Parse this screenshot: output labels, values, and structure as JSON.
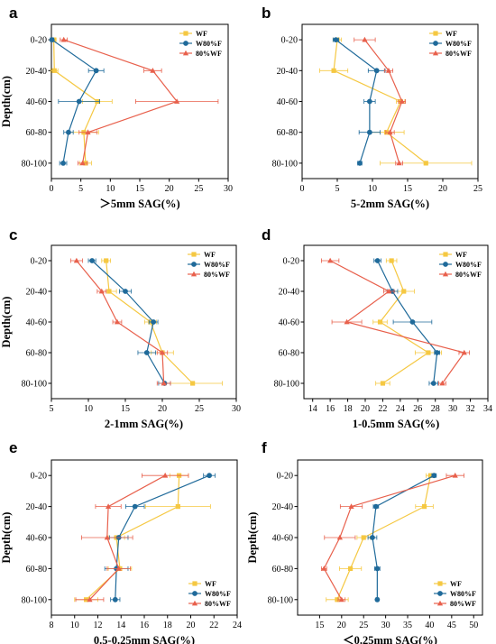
{
  "colors": {
    "WF": "#F5C842",
    "W80%F": "#1F6A9A",
    "80%WF": "#E8604C"
  },
  "chart_data": [
    {
      "type": "line",
      "panel": "a",
      "xlabel": "＞5mm SAG(%)",
      "ylabel": "Depth(cm)",
      "xlim": [
        0,
        30
      ],
      "xticks": [
        0,
        5,
        10,
        15,
        20,
        25,
        30
      ],
      "categories": [
        "0-20",
        "20-40",
        "40-60",
        "60-80",
        "80-100"
      ],
      "legend": "top-right",
      "series": [
        {
          "name": "WF",
          "marker": "square",
          "values": [
            0.4,
            0.5,
            7.8,
            5.5,
            5.8
          ],
          "err": [
            0.4,
            0.6,
            2.5,
            2.5,
            1.0
          ]
        },
        {
          "name": "W80%F",
          "marker": "circle",
          "values": [
            0.1,
            7.6,
            4.7,
            2.9,
            2.0
          ],
          "err": [
            0.3,
            1.3,
            3.5,
            0.8,
            0.6
          ]
        },
        {
          "name": "80%WF",
          "marker": "triangle",
          "values": [
            2.1,
            17.2,
            21.3,
            6.2,
            5.3
          ],
          "err": [
            0.6,
            1.5,
            7.0,
            1.5,
            0.8
          ]
        }
      ]
    },
    {
      "type": "line",
      "panel": "b",
      "xlabel": "5-2mm SAG(%)",
      "ylabel": "",
      "xlim": [
        0,
        25
      ],
      "xticks": [
        0,
        5,
        10,
        15,
        20,
        25
      ],
      "categories": [
        "0-20",
        "20-40",
        "40-60",
        "60-80",
        "80-100"
      ],
      "legend": "top-right",
      "series": [
        {
          "name": "WF",
          "marker": "square",
          "values": [
            5.0,
            4.5,
            14.0,
            12.0,
            17.6
          ],
          "err": [
            0.6,
            2.0,
            0.6,
            2.5,
            6.5
          ]
        },
        {
          "name": "W80%F",
          "marker": "circle",
          "values": [
            4.8,
            10.6,
            9.6,
            9.6,
            8.2
          ],
          "err": [
            0.4,
            1.2,
            0.8,
            1.5,
            0.3
          ]
        },
        {
          "name": "80%WF",
          "marker": "triangle",
          "values": [
            8.9,
            12.3,
            14.2,
            12.5,
            13.8
          ],
          "err": [
            1.5,
            0.6,
            0.5,
            0.6,
            0.5
          ]
        }
      ]
    },
    {
      "type": "line",
      "panel": "c",
      "xlabel": "2-1mm SAG(%)",
      "ylabel": "Depth(cm)",
      "xlim": [
        5,
        30
      ],
      "xticks": [
        5,
        10,
        15,
        20,
        25,
        30
      ],
      "categories": [
        "0-20",
        "20-40",
        "40-60",
        "60-80",
        "80-100"
      ],
      "legend": "top-right",
      "series": [
        {
          "name": "WF",
          "marker": "square",
          "values": [
            12.4,
            12.8,
            18.4,
            20.0,
            24.1
          ],
          "err": [
            0.6,
            1.0,
            0.8,
            1.5,
            4.0
          ]
        },
        {
          "name": "W80%F",
          "marker": "circle",
          "values": [
            10.5,
            15.0,
            18.8,
            17.9,
            20.3
          ],
          "err": [
            0.5,
            0.8,
            0.6,
            1.2,
            0.8
          ]
        },
        {
          "name": "80%WF",
          "marker": "triangle",
          "values": [
            8.4,
            11.8,
            13.9,
            20.0,
            20.2
          ],
          "err": [
            0.8,
            0.6,
            0.6,
            0.7,
            0.9
          ]
        }
      ]
    },
    {
      "type": "line",
      "panel": "d",
      "xlabel": "1-0.5mm SAG(%)",
      "ylabel": "",
      "xlim": [
        13,
        34
      ],
      "xticks": [
        14,
        16,
        18,
        20,
        22,
        24,
        26,
        28,
        30,
        32,
        34
      ],
      "categories": [
        "0-20",
        "20-40",
        "40-60",
        "60-80",
        "80-100"
      ],
      "legend": "top-right",
      "series": [
        {
          "name": "WF",
          "marker": "square",
          "values": [
            23.0,
            24.4,
            21.7,
            27.2,
            22.0
          ],
          "err": [
            0.6,
            1.2,
            0.8,
            1.5,
            0.8
          ]
        },
        {
          "name": "W80%F",
          "marker": "circle",
          "values": [
            21.4,
            23.1,
            25.4,
            28.2,
            27.8
          ],
          "err": [
            0.4,
            0.6,
            2.2,
            0.3,
            0.5
          ]
        },
        {
          "name": "80%WF",
          "marker": "triangle",
          "values": [
            16.0,
            22.7,
            17.9,
            31.3,
            28.8
          ],
          "err": [
            1.0,
            0.6,
            1.7,
            0.6,
            0.4
          ]
        }
      ]
    },
    {
      "type": "line",
      "panel": "e",
      "xlabel": "0.5-0.25mm SAG(%)",
      "ylabel": "Depth(cm)",
      "xlim": [
        8,
        24
      ],
      "xticks": [
        8,
        10,
        12,
        14,
        16,
        18,
        20,
        22,
        24
      ],
      "categories": [
        "0-20",
        "20-40",
        "40-60",
        "60-80",
        "80-100"
      ],
      "legend": "bottom-right",
      "series": [
        {
          "name": "WF",
          "marker": "square",
          "values": [
            19.0,
            18.9,
            13.6,
            13.9,
            11.0
          ],
          "err": [
            0.8,
            2.8,
            0.7,
            1.0,
            1.0
          ]
        },
        {
          "name": "W80%F",
          "marker": "circle",
          "values": [
            21.6,
            15.2,
            13.8,
            13.6,
            13.5
          ],
          "err": [
            0.5,
            0.8,
            0.8,
            1.0,
            0.4
          ]
        },
        {
          "name": "80%WF",
          "marker": "triangle",
          "values": [
            17.8,
            12.9,
            12.8,
            13.8,
            11.3
          ],
          "err": [
            2.0,
            1.1,
            2.2,
            1.0,
            1.2
          ]
        }
      ]
    },
    {
      "type": "line",
      "panel": "f",
      "xlabel": "＜0.25mm SAG(%)",
      "ylabel": "Depth(cm)",
      "xlim": [
        10,
        52
      ],
      "xticks": [
        15,
        20,
        25,
        30,
        35,
        40,
        45,
        50
      ],
      "categories": [
        "0-20",
        "20-40",
        "40-60",
        "60-80",
        "80-100"
      ],
      "legend": "bottom-right",
      "series": [
        {
          "name": "WF",
          "marker": "square",
          "values": [
            40.2,
            38.8,
            25.0,
            22.0,
            19.0
          ],
          "err": [
            1.0,
            2.0,
            1.5,
            2.5,
            2.5
          ]
        },
        {
          "name": "W80%F",
          "marker": "circle",
          "values": [
            41.0,
            27.8,
            27.0,
            28.1,
            28.1
          ],
          "err": [
            0.5,
            0.6,
            1.0,
            0.6,
            0.3
          ]
        },
        {
          "name": "80%WF",
          "marker": "triangle",
          "values": [
            45.8,
            22.2,
            19.6,
            16.0,
            20.0
          ],
          "err": [
            2.0,
            2.5,
            3.5,
            0.6,
            0.8
          ]
        }
      ]
    }
  ]
}
